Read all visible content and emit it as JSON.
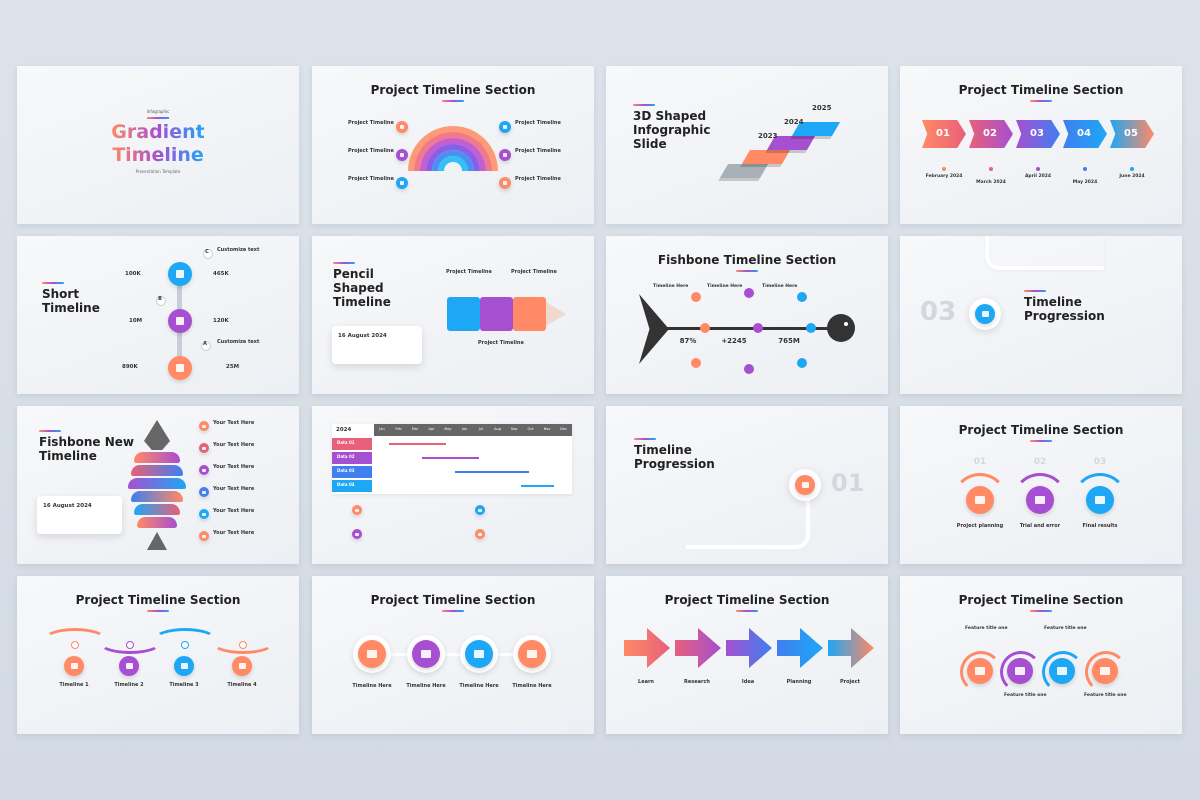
{
  "slides": [
    {
      "kicker": "Infographic",
      "title": [
        "Gradient",
        "Timeline"
      ],
      "subtitle": "Presentation Template"
    },
    {
      "title": "Project Timeline Section",
      "items": [
        "Project Timeline",
        "Project Timeline",
        "Project Timeline",
        "Project Timeline",
        "Project Timeline",
        "Project Timeline"
      ]
    },
    {
      "title": "3D Shaped Infographic Slide",
      "years": [
        "2023",
        "2024",
        "2025"
      ]
    },
    {
      "title": "Project Timeline Section",
      "steps": [
        "01",
        "02",
        "03",
        "04",
        "05"
      ],
      "dates": [
        "February 2024",
        "March 2024",
        "April 2024",
        "May 2024",
        "June 2024"
      ]
    },
    {
      "title": "Short Timeline",
      "values": [
        "100K",
        "465K",
        "10M",
        "120K",
        "890K",
        "25M"
      ],
      "letters": [
        "C",
        "B",
        "A"
      ],
      "items": [
        "Customize text",
        "Customize text"
      ]
    },
    {
      "title": "Pencil Shaped Timeline",
      "date": "16 August 2024",
      "items": [
        "Project Timeline",
        "Project Timeline",
        "Project Timeline"
      ]
    },
    {
      "title": "Fishbone Timeline Section",
      "items": [
        "Timeline Here",
        "Timeline Here",
        "Timeline Here"
      ],
      "stats": [
        "87%",
        "+2245",
        "765M"
      ]
    },
    {
      "number": "03",
      "title": "Timeline Progression"
    },
    {
      "title": "Fishbone New Timeline",
      "date": "16 August 2024",
      "items": [
        "Your Text Here",
        "Your Text Here",
        "Your Text Here",
        "Your Text Here",
        "Your Text Here",
        "Your Text Here"
      ]
    },
    {
      "year": "2024",
      "months": [
        "Jan",
        "Feb",
        "Mar",
        "Apr",
        "May",
        "Jun",
        "Jul",
        "Aug",
        "Sep",
        "Oct",
        "Nov",
        "Dec"
      ],
      "rows": [
        "Data 01",
        "Data 02",
        "Data 03",
        "Data 04"
      ]
    },
    {
      "title": "Timeline Progression",
      "number": "01"
    },
    {
      "title": "Project Timeline Section",
      "numbers": [
        "01",
        "02",
        "03"
      ],
      "items": [
        "Project planning",
        "Trial and error",
        "Final results"
      ]
    },
    {
      "title": "Project Timeline Section",
      "items": [
        "Timeline 1",
        "Timeline 2",
        "Timeline 3",
        "Timeline 4"
      ]
    },
    {
      "title": "Project Timeline Section",
      "items": [
        "Timeline Here",
        "Timeline Here",
        "Timeline Here",
        "Timeline Here"
      ]
    },
    {
      "title": "Project Timeline Section",
      "items": [
        "Learn",
        "Research",
        "Idea",
        "Planning",
        "Project"
      ]
    },
    {
      "title": "Project Timeline Section",
      "items": [
        "Feature title one",
        "Feature title one",
        "Feature title one",
        "Feature title one"
      ]
    }
  ]
}
